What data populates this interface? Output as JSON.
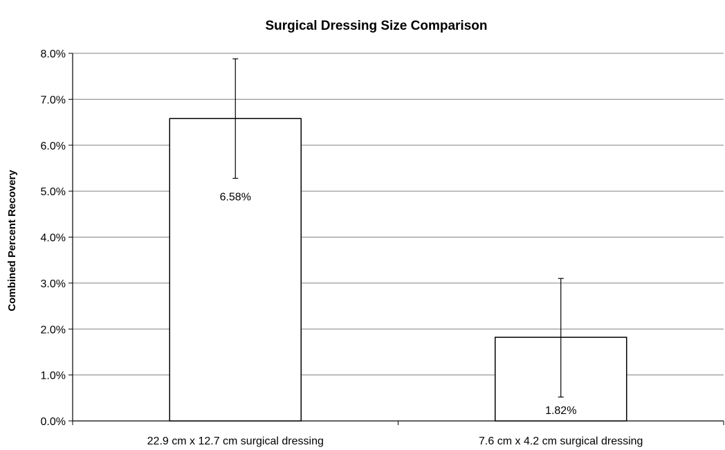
{
  "chart_data": {
    "type": "bar",
    "title": "Surgical Dressing Size Comparison",
    "xlabel": "",
    "ylabel": "Combined Percent Recovery",
    "categories": [
      "22.9 cm x 12.7 cm surgical dressing",
      "7.6 cm x 4.2 cm surgical dressing"
    ],
    "values": [
      6.58,
      1.82
    ],
    "value_labels": [
      "6.58%",
      "1.82%"
    ],
    "error_low": [
      5.28,
      0.52
    ],
    "error_high": [
      7.88,
      3.1
    ],
    "ylim": [
      0,
      8
    ],
    "yticks": [
      0,
      1,
      2,
      3,
      4,
      5,
      6,
      7,
      8
    ],
    "ytick_labels": [
      "0.0%",
      "1.0%",
      "2.0%",
      "3.0%",
      "4.0%",
      "5.0%",
      "6.0%",
      "7.0%",
      "8.0%"
    ],
    "grid": true,
    "legend": "none",
    "colors": {
      "bar_fill": "#ffffff",
      "bar_stroke": "#000000",
      "grid": "#808080"
    }
  }
}
